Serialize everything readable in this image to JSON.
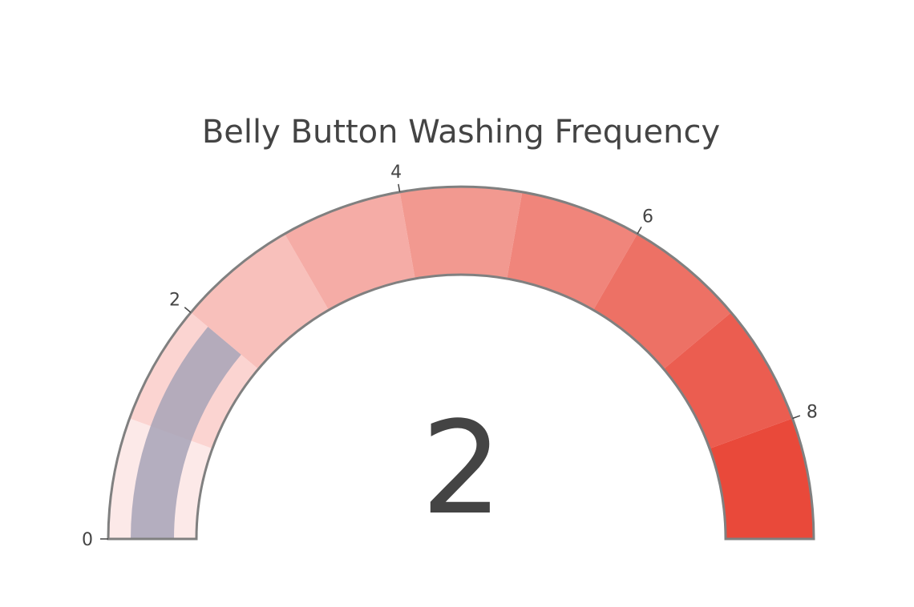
{
  "chart_data": {
    "type": "gauge",
    "title": "Belly Button Washing Frequency",
    "value": 2,
    "value_label": "2",
    "range": [
      0,
      9
    ],
    "ticks": [
      {
        "value": 0,
        "label": "0"
      },
      {
        "value": 2,
        "label": "2"
      },
      {
        "value": 4,
        "label": "4"
      },
      {
        "value": 6,
        "label": "6"
      },
      {
        "value": 8,
        "label": "8"
      }
    ],
    "steps": [
      {
        "from": 0,
        "to": 1,
        "color": "#fce9e8"
      },
      {
        "from": 1,
        "to": 2,
        "color": "#fbd4d1"
      },
      {
        "from": 2,
        "to": 3,
        "color": "#f8c0bb"
      },
      {
        "from": 3,
        "to": 4,
        "color": "#f5aca6"
      },
      {
        "from": 4,
        "to": 5,
        "color": "#f29990"
      },
      {
        "from": 5,
        "to": 6,
        "color": "#f0857b"
      },
      {
        "from": 6,
        "to": 7,
        "color": "#ed7165"
      },
      {
        "from": 7,
        "to": 8,
        "color": "#eb5d50"
      },
      {
        "from": 8,
        "to": 9,
        "color": "#e9493a"
      }
    ],
    "bar_color": "#a7a3b7",
    "border_color": "#808080"
  }
}
